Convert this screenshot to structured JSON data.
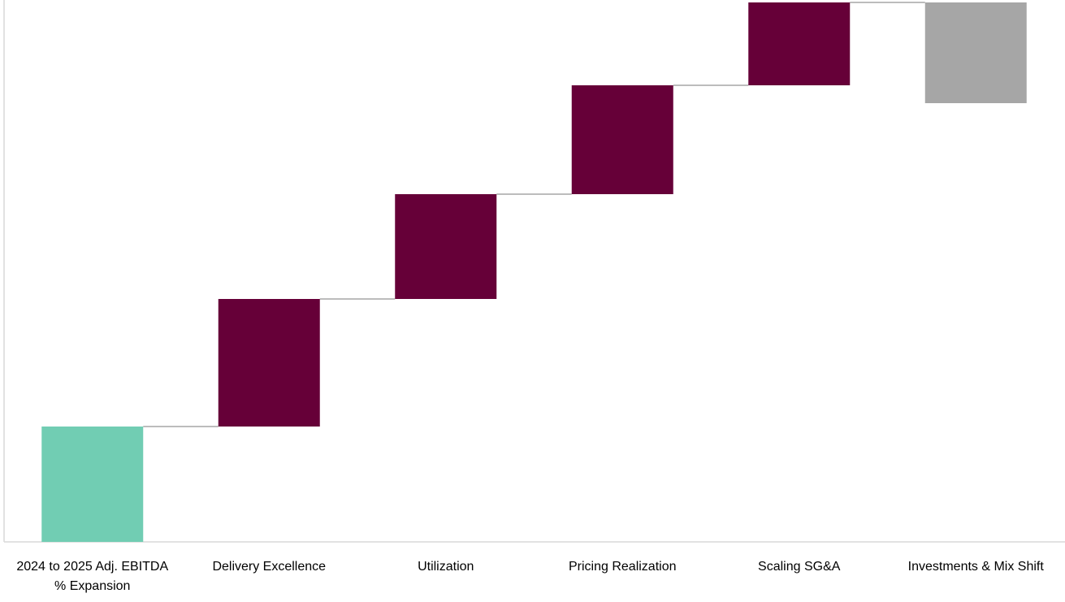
{
  "chart_data": {
    "type": "bar",
    "subtype": "waterfall",
    "title": "",
    "xlabel": "",
    "ylabel": "",
    "categories": [
      "2024 to 2025 Adj. EBITDA % Expansion",
      "Delivery Excellence",
      "Utilization",
      "Pricing Realization",
      "Scaling SG&A",
      "Investments & Mix Shift"
    ],
    "values": [
      142,
      157,
      129,
      134,
      102,
      -124
    ],
    "grid": false,
    "legend": "none",
    "colors": {
      "start": "#71CDB3",
      "increase": "#660038",
      "decrease": "#A6A6A6",
      "connector": "#A6A6A6",
      "axis": "#D9D9D9"
    }
  }
}
